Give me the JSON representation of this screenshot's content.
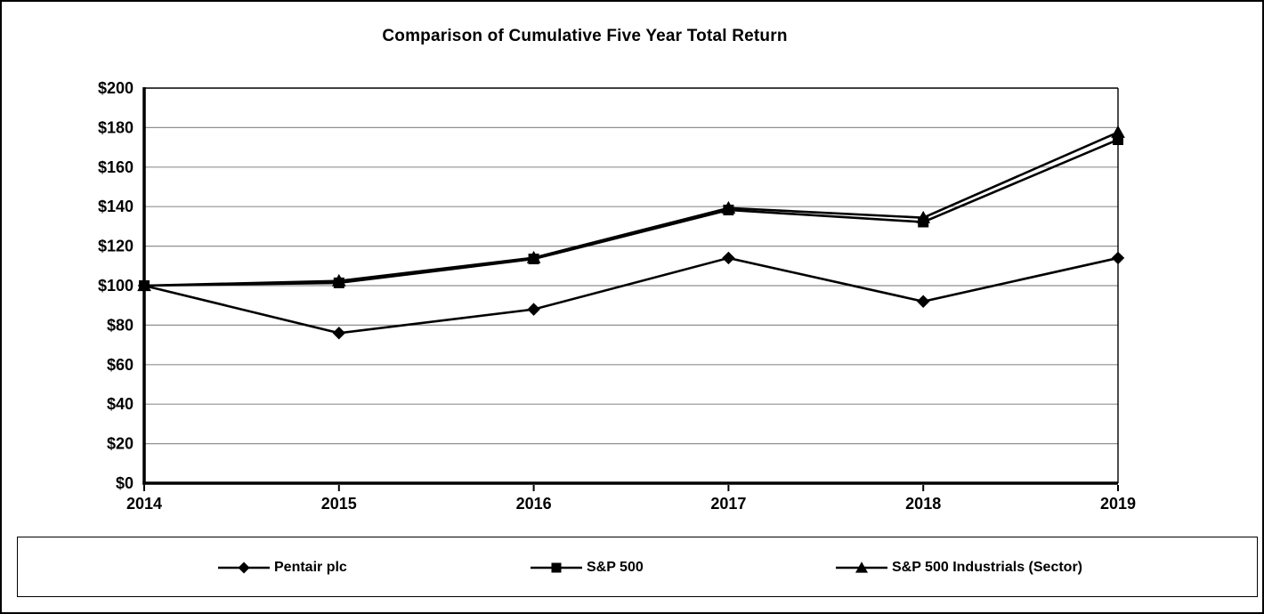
{
  "chart_data": {
    "type": "line",
    "title": "Comparison of Cumulative Five Year Total Return",
    "categories": [
      "2014",
      "2015",
      "2016",
      "2017",
      "2018",
      "2019"
    ],
    "series": [
      {
        "name": "Pentair plc",
        "marker": "diamond",
        "color": "#000000",
        "values": [
          100,
          76,
          88,
          114,
          92,
          114
        ]
      },
      {
        "name": "S&P 500",
        "marker": "square",
        "color": "#000000",
        "values": [
          100,
          101.4,
          113.5,
          138.3,
          132.2,
          173.9
        ]
      },
      {
        "name": "S&P 500 Industrials (Sector)",
        "marker": "triangle",
        "color": "#000000",
        "values": [
          100,
          102.4,
          114.1,
          139.3,
          134.4,
          177.6
        ]
      }
    ],
    "ylim": [
      0,
      200
    ],
    "y_ticks": [
      0,
      20,
      40,
      60,
      80,
      100,
      120,
      140,
      160,
      180,
      200
    ],
    "y_tick_labels": [
      "$0",
      "$20",
      "$40",
      "$60",
      "$80",
      "$100",
      "$120",
      "$140",
      "$160",
      "$180",
      "$200"
    ],
    "xlabel": "",
    "ylabel": "",
    "grid": true,
    "legend_position": "bottom",
    "colors": {
      "line": "#000000",
      "gridline": "#909090",
      "axis": "#000000",
      "plot_border": "#000000",
      "background": "#ffffff"
    }
  }
}
